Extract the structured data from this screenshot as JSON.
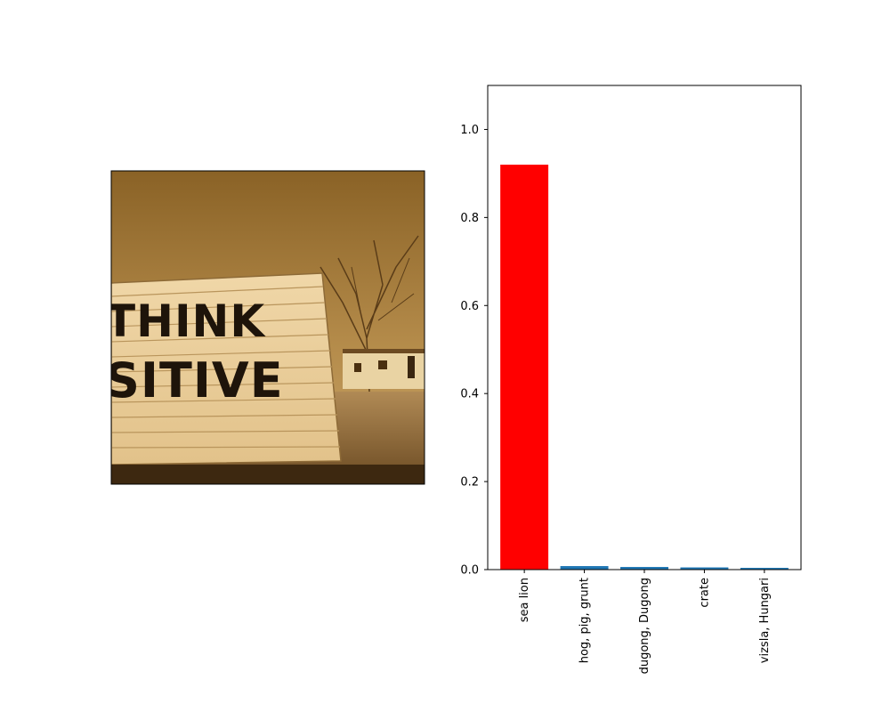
{
  "photo": {
    "sign_text_line1": "THINK",
    "sign_text_line2": "SITIVE",
    "tone": "sepia"
  },
  "chart_data": {
    "type": "bar",
    "title": "",
    "xlabel": "",
    "ylabel": "",
    "categories": [
      "sea lion",
      "hog, pig, grunt",
      "dugong, Dugong",
      "crate",
      "vizsla, Hungari"
    ],
    "values": [
      0.92,
      0.008,
      0.006,
      0.005,
      0.004
    ],
    "bar_colors": [
      "#ff0000",
      "#1f77b4",
      "#1f77b4",
      "#1f77b4",
      "#1f77b4"
    ],
    "ylim": [
      0,
      1.1
    ],
    "yticks": [
      0.0,
      0.2,
      0.4,
      0.6,
      0.8,
      1.0
    ],
    "ytick_labels": [
      "0.0",
      "0.2",
      "0.4",
      "0.6",
      "0.8",
      "1.0"
    ],
    "grid": false,
    "legend": "none"
  }
}
